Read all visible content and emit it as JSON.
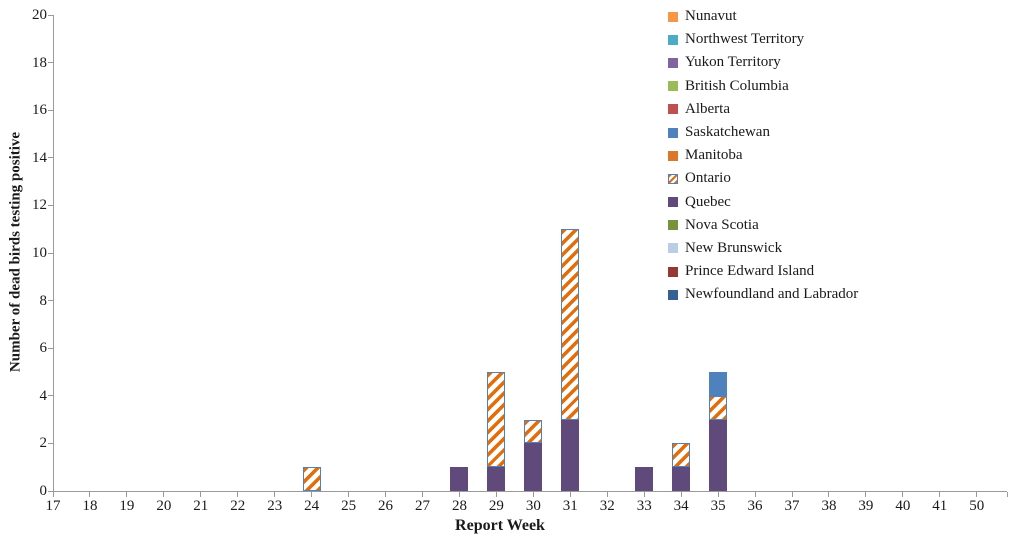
{
  "chart_data": {
    "type": "bar",
    "stacked": true,
    "title": "",
    "xlabel": "Report Week",
    "ylabel": "Number of dead birds testing positive",
    "categories": [
      "17",
      "18",
      "19",
      "20",
      "21",
      "22",
      "23",
      "24",
      "25",
      "26",
      "27",
      "28",
      "29",
      "30",
      "31",
      "32",
      "33",
      "34",
      "35",
      "36",
      "37",
      "38",
      "39",
      "40",
      "41",
      "50"
    ],
    "ylim": [
      0,
      20
    ],
    "ytick_step": 2,
    "yticks": [
      0,
      2,
      4,
      6,
      8,
      10,
      12,
      14,
      16,
      18,
      20
    ],
    "grid": false,
    "legend_position": "top-right",
    "stack_order": "bottom-to-top is reverse of legend order",
    "axis_color": "#9a9a9a",
    "text_color": "#1a1a1a",
    "series": [
      {
        "name": "Nunavut",
        "color": "#F79646",
        "values": [
          0,
          0,
          0,
          0,
          0,
          0,
          0,
          0,
          0,
          0,
          0,
          0,
          0,
          0,
          0,
          0,
          0,
          0,
          0,
          0,
          0,
          0,
          0,
          0,
          0,
          0
        ]
      },
      {
        "name": "Northwest Territory",
        "color": "#4BACC6",
        "values": [
          0,
          0,
          0,
          0,
          0,
          0,
          0,
          0,
          0,
          0,
          0,
          0,
          0,
          0,
          0,
          0,
          0,
          0,
          0,
          0,
          0,
          0,
          0,
          0,
          0,
          0
        ]
      },
      {
        "name": "Yukon Territory",
        "color": "#8064A2",
        "values": [
          0,
          0,
          0,
          0,
          0,
          0,
          0,
          0,
          0,
          0,
          0,
          0,
          0,
          0,
          0,
          0,
          0,
          0,
          0,
          0,
          0,
          0,
          0,
          0,
          0,
          0
        ]
      },
      {
        "name": "British Columbia",
        "color": "#9BBB59",
        "values": [
          0,
          0,
          0,
          0,
          0,
          0,
          0,
          0,
          0,
          0,
          0,
          0,
          0,
          0,
          0,
          0,
          0,
          0,
          0,
          0,
          0,
          0,
          0,
          0,
          0,
          0
        ]
      },
      {
        "name": "Alberta",
        "color": "#C0504D",
        "values": [
          0,
          0,
          0,
          0,
          0,
          0,
          0,
          0,
          0,
          0,
          0,
          0,
          0,
          0,
          0,
          0,
          0,
          0,
          0,
          0,
          0,
          0,
          0,
          0,
          0,
          0
        ]
      },
      {
        "name": "Saskatchewan",
        "color": "#4F81BD",
        "values": [
          0,
          0,
          0,
          0,
          0,
          0,
          0,
          0,
          0,
          0,
          0,
          0,
          0,
          0,
          0,
          0,
          0,
          0,
          1,
          0,
          0,
          0,
          0,
          0,
          0,
          0
        ]
      },
      {
        "name": "Manitoba",
        "color": "#D9772B",
        "values": [
          0,
          0,
          0,
          0,
          0,
          0,
          0,
          0,
          0,
          0,
          0,
          0,
          0,
          0,
          0,
          0,
          0,
          0,
          0,
          0,
          0,
          0,
          0,
          0,
          0,
          0
        ]
      },
      {
        "name": "Ontario",
        "color": "#E46D0A",
        "pattern": "diagonal-stripes",
        "pattern_fg": "#E46D0A",
        "pattern_bg": "#FFFFFF",
        "border_color": "#4F81BD",
        "values": [
          0,
          0,
          0,
          0,
          0,
          0,
          0,
          1,
          0,
          0,
          0,
          0,
          4,
          1,
          8,
          0,
          0,
          1,
          1,
          0,
          0,
          0,
          0,
          0,
          0,
          0
        ]
      },
      {
        "name": "Quebec",
        "color": "#604A7B",
        "values": [
          0,
          0,
          0,
          0,
          0,
          0,
          0,
          0,
          0,
          0,
          0,
          1,
          1,
          2,
          3,
          0,
          1,
          1,
          3,
          0,
          0,
          0,
          0,
          0,
          0,
          0
        ]
      },
      {
        "name": "Nova Scotia",
        "color": "#77933C",
        "values": [
          0,
          0,
          0,
          0,
          0,
          0,
          0,
          0,
          0,
          0,
          0,
          0,
          0,
          0,
          0,
          0,
          0,
          0,
          0,
          0,
          0,
          0,
          0,
          0,
          0,
          0
        ]
      },
      {
        "name": "New Brunswick",
        "color": "#B9CDE5",
        "values": [
          0,
          0,
          0,
          0,
          0,
          0,
          0,
          0,
          0,
          0,
          0,
          0,
          0,
          0,
          0,
          0,
          0,
          0,
          0,
          0,
          0,
          0,
          0,
          0,
          0,
          0
        ]
      },
      {
        "name": "Prince Edward Island",
        "color": "#953735",
        "values": [
          0,
          0,
          0,
          0,
          0,
          0,
          0,
          0,
          0,
          0,
          0,
          0,
          0,
          0,
          0,
          0,
          0,
          0,
          0,
          0,
          0,
          0,
          0,
          0,
          0,
          0
        ]
      },
      {
        "name": "Newfoundland and Labrador",
        "color": "#366092",
        "values": [
          0,
          0,
          0,
          0,
          0,
          0,
          0,
          0,
          0,
          0,
          0,
          0,
          0,
          0,
          0,
          0,
          0,
          0,
          0,
          0,
          0,
          0,
          0,
          0,
          0,
          0
        ]
      }
    ]
  }
}
